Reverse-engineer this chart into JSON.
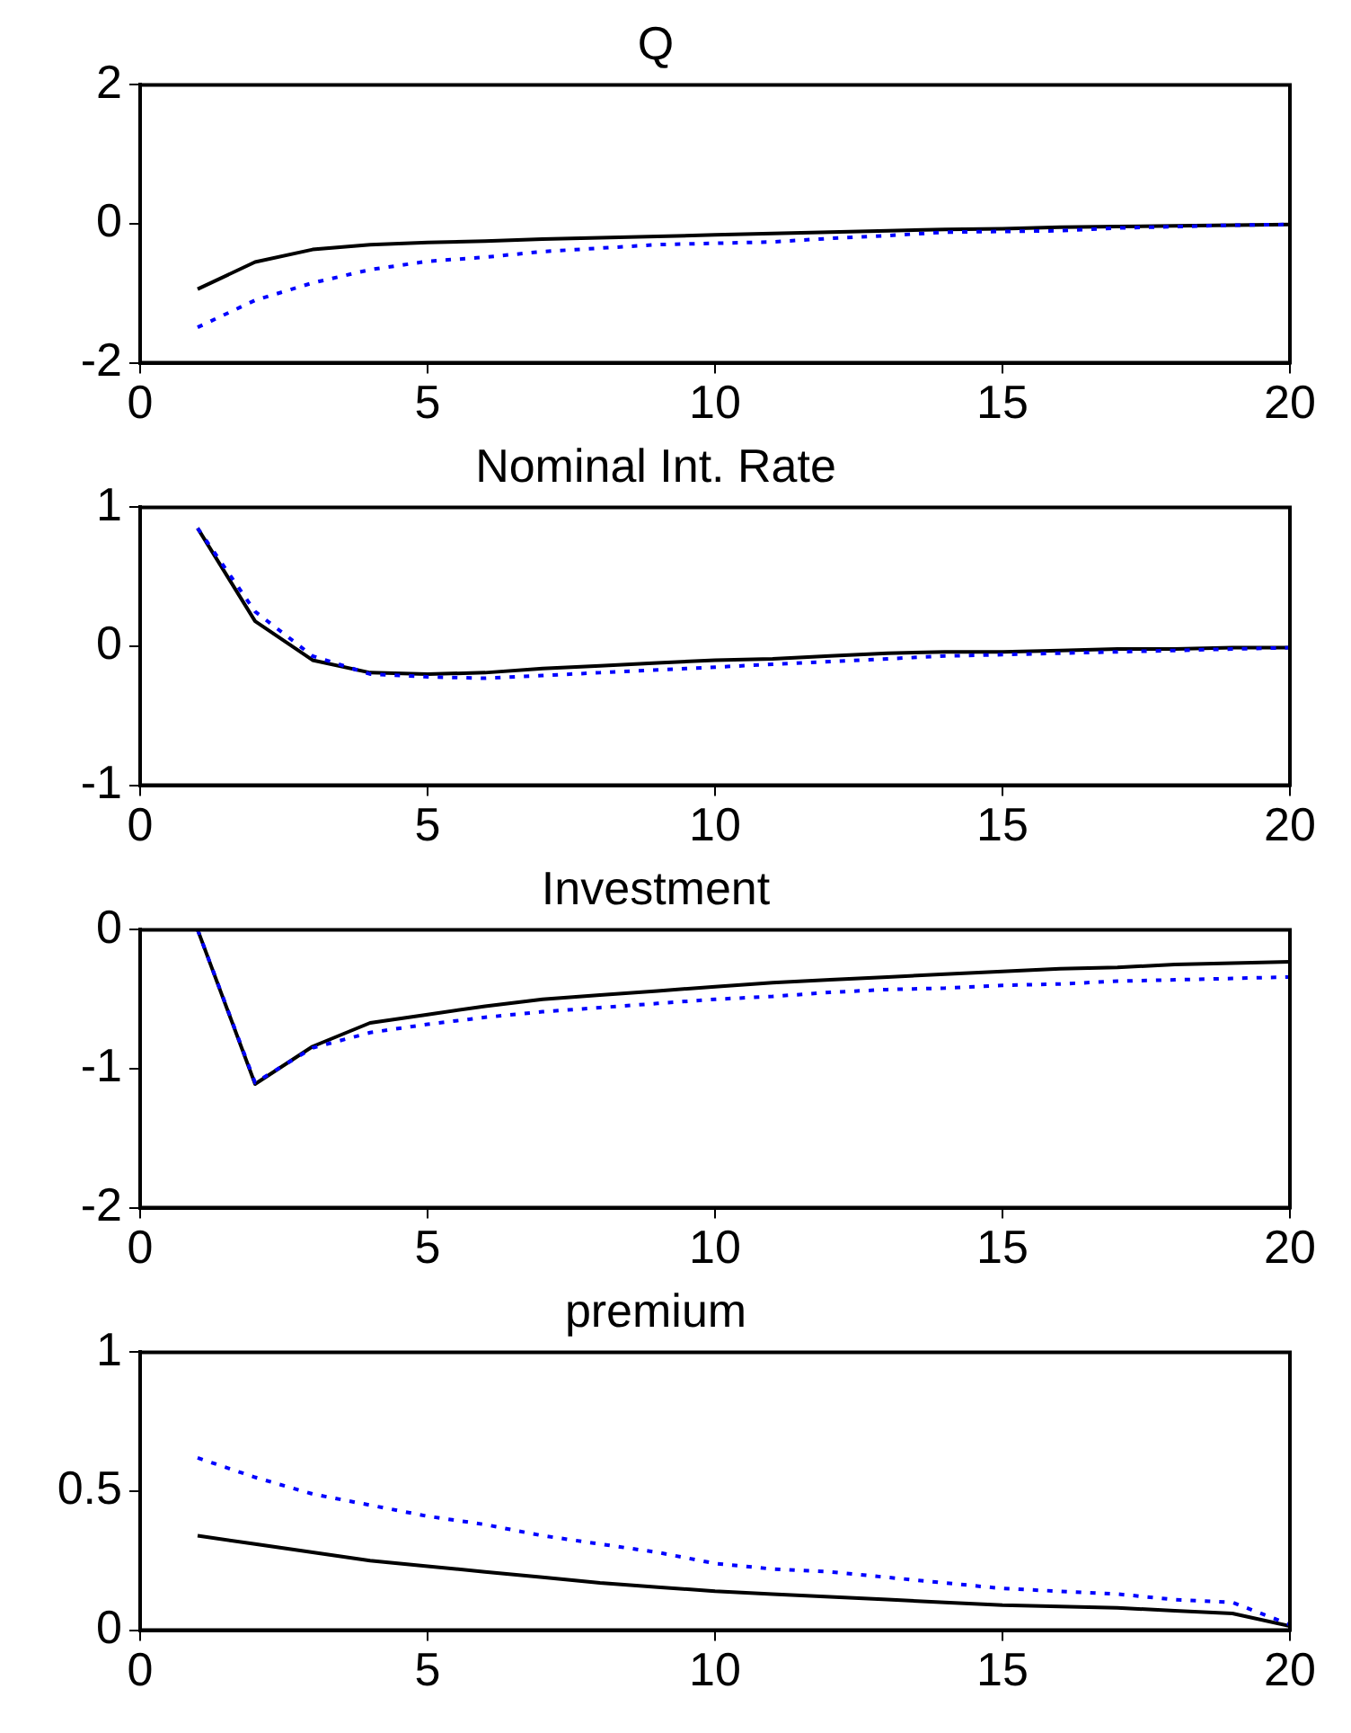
{
  "chart_data": [
    {
      "type": "line",
      "title": "Q",
      "x": [
        1,
        2,
        3,
        4,
        5,
        6,
        7,
        8,
        9,
        10,
        11,
        12,
        13,
        14,
        15,
        16,
        17,
        18,
        19,
        20
      ],
      "xlim": [
        0,
        20
      ],
      "xticks": [
        0,
        5,
        10,
        15,
        20
      ],
      "ylim": [
        -2,
        2
      ],
      "yticks": [
        -2,
        0,
        2
      ],
      "grid": false,
      "legend": false,
      "marker": "none",
      "series": [
        {
          "color": "#000000",
          "line_style": "solid",
          "values": [
            -0.94,
            -0.55,
            -0.37,
            -0.3,
            -0.27,
            -0.25,
            -0.22,
            -0.2,
            -0.18,
            -0.16,
            -0.14,
            -0.12,
            -0.1,
            -0.08,
            -0.07,
            -0.05,
            -0.04,
            -0.03,
            -0.02,
            -0.01
          ]
        },
        {
          "color": "#0000ff",
          "line_style": "dotted",
          "values": [
            -1.49,
            -1.1,
            -0.85,
            -0.66,
            -0.54,
            -0.48,
            -0.4,
            -0.35,
            -0.3,
            -0.28,
            -0.26,
            -0.21,
            -0.17,
            -0.12,
            -0.11,
            -0.1,
            -0.06,
            -0.04,
            -0.02,
            -0.01
          ]
        }
      ]
    },
    {
      "type": "line",
      "title": "Nominal Int. Rate",
      "x": [
        1,
        2,
        3,
        4,
        5,
        6,
        7,
        8,
        9,
        10,
        11,
        12,
        13,
        14,
        15,
        16,
        17,
        18,
        19,
        20
      ],
      "xlim": [
        0,
        20
      ],
      "xticks": [
        0,
        5,
        10,
        15,
        20
      ],
      "ylim": [
        -1,
        1
      ],
      "yticks": [
        -1,
        0,
        1
      ],
      "grid": false,
      "legend": false,
      "marker": "none",
      "series": [
        {
          "color": "#000000",
          "line_style": "solid",
          "values": [
            0.85,
            0.18,
            -0.1,
            -0.19,
            -0.2,
            -0.19,
            -0.16,
            -0.14,
            -0.12,
            -0.1,
            -0.09,
            -0.07,
            -0.05,
            -0.04,
            -0.04,
            -0.03,
            -0.02,
            -0.02,
            -0.01,
            -0.01
          ]
        },
        {
          "color": "#0000ff",
          "line_style": "dotted",
          "values": [
            0.85,
            0.25,
            -0.07,
            -0.2,
            -0.22,
            -0.23,
            -0.21,
            -0.19,
            -0.17,
            -0.15,
            -0.13,
            -0.11,
            -0.09,
            -0.07,
            -0.06,
            -0.05,
            -0.04,
            -0.03,
            -0.02,
            -0.01
          ]
        }
      ]
    },
    {
      "type": "line",
      "title": "Investment",
      "x": [
        1,
        2,
        3,
        4,
        5,
        6,
        7,
        8,
        9,
        10,
        11,
        12,
        13,
        14,
        15,
        16,
        17,
        18,
        19,
        20
      ],
      "xlim": [
        0,
        20
      ],
      "xticks": [
        0,
        5,
        10,
        15,
        20
      ],
      "ylim": [
        -2,
        0
      ],
      "yticks": [
        -2,
        -1,
        0
      ],
      "grid": false,
      "legend": false,
      "marker": "none",
      "series": [
        {
          "color": "#000000",
          "line_style": "solid",
          "values": [
            0,
            -1.11,
            -0.84,
            -0.67,
            -0.61,
            -0.55,
            -0.5,
            -0.47,
            -0.44,
            -0.41,
            -0.38,
            -0.36,
            -0.34,
            -0.32,
            -0.3,
            -0.28,
            -0.27,
            -0.25,
            -0.24,
            -0.23
          ]
        },
        {
          "color": "#0000ff",
          "line_style": "dotted",
          "values": [
            0,
            -1.1,
            -0.85,
            -0.74,
            -0.68,
            -0.63,
            -0.59,
            -0.56,
            -0.53,
            -0.5,
            -0.48,
            -0.45,
            -0.43,
            -0.42,
            -0.4,
            -0.39,
            -0.37,
            -0.36,
            -0.35,
            -0.34
          ]
        }
      ]
    },
    {
      "type": "line",
      "title": "premium",
      "x": [
        1,
        2,
        3,
        4,
        5,
        6,
        7,
        8,
        9,
        10,
        11,
        12,
        13,
        14,
        15,
        16,
        17,
        18,
        19,
        20
      ],
      "xlim": [
        0,
        20
      ],
      "xticks": [
        0,
        5,
        10,
        15,
        20
      ],
      "ylim": [
        0,
        1
      ],
      "yticks": [
        0,
        0.5,
        1
      ],
      "grid": false,
      "legend": false,
      "marker": "none",
      "series": [
        {
          "color": "#000000",
          "line_style": "solid",
          "values": [
            0.34,
            0.31,
            0.28,
            0.25,
            0.23,
            0.21,
            0.19,
            0.17,
            0.155,
            0.14,
            0.13,
            0.12,
            0.11,
            0.1,
            0.09,
            0.085,
            0.08,
            0.07,
            0.06,
            0.015
          ]
        },
        {
          "color": "#0000ff",
          "line_style": "dotted",
          "values": [
            0.62,
            0.55,
            0.49,
            0.45,
            0.41,
            0.38,
            0.34,
            0.31,
            0.28,
            0.24,
            0.22,
            0.21,
            0.19,
            0.17,
            0.15,
            0.14,
            0.13,
            0.11,
            0.1,
            0.02
          ]
        }
      ]
    }
  ]
}
